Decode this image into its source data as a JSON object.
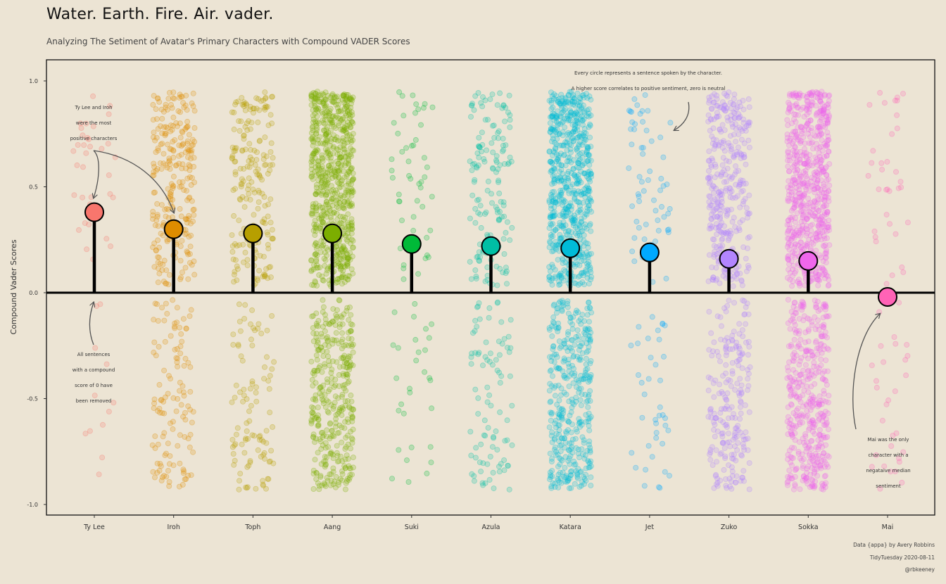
{
  "header": {
    "title": "Water. Earth. Fire. Air. vader.",
    "subtitle": "Analyzing The Setiment of Avatar's Primary Characters with Compound VADER Scores"
  },
  "caption": {
    "line1": "Data {appa} by Avery Robbins",
    "line2": "TidyTuesday 2020-08-11",
    "line3": "@rbkeeney"
  },
  "annotations": {
    "top_left": [
      "Ty Lee and Iroh",
      "were the most",
      "positive characters"
    ],
    "bottom_left": [
      "All sentences",
      "with a compound",
      "score of 0 have",
      "been removed"
    ],
    "top_right": [
      "Every circle represents a sentence spoken by the character.",
      "A higher score correlates to positive sentiment, zero is neutral"
    ],
    "bottom_right": [
      "Mai was the only",
      "character with a",
      "negataive median",
      "sentiment"
    ]
  },
  "chart_data": {
    "type": "scatter",
    "ylabel": "Compound Vader Scores",
    "ylim": [
      -1.0,
      1.0
    ],
    "yticks": [
      "1.0",
      "0.5",
      "0.0",
      "-0.5",
      "-1.0"
    ],
    "ytick_values": [
      1.0,
      0.5,
      0.0,
      -0.5,
      -1.0
    ],
    "characters": [
      {
        "name": "Ty Lee",
        "median": 0.38,
        "color": "#f8766d",
        "n_pos": 35,
        "n_neg": 12
      },
      {
        "name": "Iroh",
        "median": 0.3,
        "color": "#de8c00",
        "n_pos": 260,
        "n_neg": 120
      },
      {
        "name": "Toph",
        "median": 0.28,
        "color": "#b79f00",
        "n_pos": 200,
        "n_neg": 100
      },
      {
        "name": "Aang",
        "median": 0.28,
        "color": "#7cae00",
        "n_pos": 700,
        "n_neg": 350
      },
      {
        "name": "Suki",
        "median": 0.23,
        "color": "#00ba38",
        "n_pos": 50,
        "n_neg": 30
      },
      {
        "name": "Azula",
        "median": 0.22,
        "color": "#00bfa5",
        "n_pos": 150,
        "n_neg": 90
      },
      {
        "name": "Katara",
        "median": 0.21,
        "color": "#00bcd8",
        "n_pos": 650,
        "n_neg": 380
      },
      {
        "name": "Jet",
        "median": 0.19,
        "color": "#00a9ff",
        "n_pos": 60,
        "n_neg": 40
      },
      {
        "name": "Zuko",
        "median": 0.16,
        "color": "#b385ff",
        "n_pos": 350,
        "n_neg": 220
      },
      {
        "name": "Sokka",
        "median": 0.15,
        "color": "#ef67eb",
        "n_pos": 650,
        "n_neg": 420
      },
      {
        "name": "Mai",
        "median": -0.02,
        "color": "#ff63b6",
        "n_pos": 35,
        "n_neg": 30
      }
    ]
  }
}
